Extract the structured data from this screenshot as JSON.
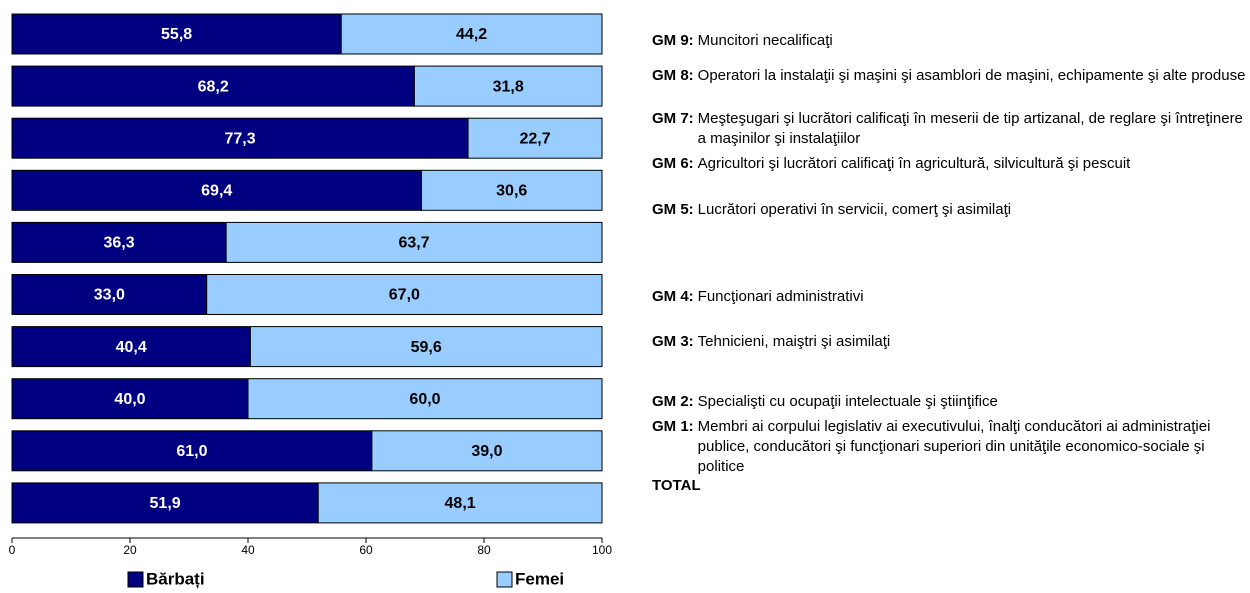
{
  "chart_data": {
    "type": "stacked_bar_horizontal",
    "categories": [
      {
        "code": "GM 9:",
        "label": "Muncitori necalificaţi"
      },
      {
        "code": "GM 8:",
        "label": "Operatori la instalaţii şi maşini şi asamblori de maşini, echipamente şi alte produse"
      },
      {
        "code": "GM 7:",
        "label": "Meşteşugari şi lucrători calificaţi în meserii de tip artizanal, de reglare şi întreţinere a maşinilor şi instalaţiilor"
      },
      {
        "code": "GM 6:",
        "label": "Agricultori şi lucrători calificaţi în agricultură, silvicultură şi pescuit"
      },
      {
        "code": "GM 5:",
        "label": "Lucrători operativi în servicii, comerţ şi asimilaţi"
      },
      {
        "code": "GM 4:",
        "label": "Funcţionari administrativi"
      },
      {
        "code": "GM 3:",
        "label": "Tehnicieni, maiştri şi asimilaţi"
      },
      {
        "code": "GM 2:",
        "label": "Specialişti cu ocupaţii intelectuale şi ştiinţifice"
      },
      {
        "code": "GM 1:",
        "label": "Membri ai corpului legislativ ai executivului, înalţi conducători ai administraţiei publice, conducători şi funcţionari superiori din unităţile economico-sociale şi politice"
      },
      {
        "code": "TOTAL"
      }
    ],
    "series": [
      {
        "name": "Bărbați",
        "color": "#000080",
        "label_color": "#ffffff",
        "values": [
          55.8,
          68.2,
          77.3,
          69.4,
          36.3,
          33.0,
          40.4,
          40.0,
          61.0,
          51.9
        ],
        "value_labels": [
          "55,8",
          "68,2",
          "77,3",
          "69,4",
          "36,3",
          "33,0",
          "40,4",
          "40,0",
          "61,0",
          "51,9"
        ]
      },
      {
        "name": "Femei",
        "color": "#99ccff",
        "label_color": "#000000",
        "values": [
          44.2,
          31.8,
          22.7,
          30.6,
          63.7,
          67.0,
          59.6,
          60.0,
          39.0,
          48.1
        ],
        "value_labels": [
          "44,2",
          "31,8",
          "22,7",
          "30,6",
          "63,7",
          "67,0",
          "59,6",
          "60,0",
          "39,0",
          "48,1"
        ]
      }
    ],
    "xlim": [
      0,
      100
    ],
    "xticks": [
      0,
      20,
      40,
      60,
      80,
      100
    ],
    "grid": false
  }
}
